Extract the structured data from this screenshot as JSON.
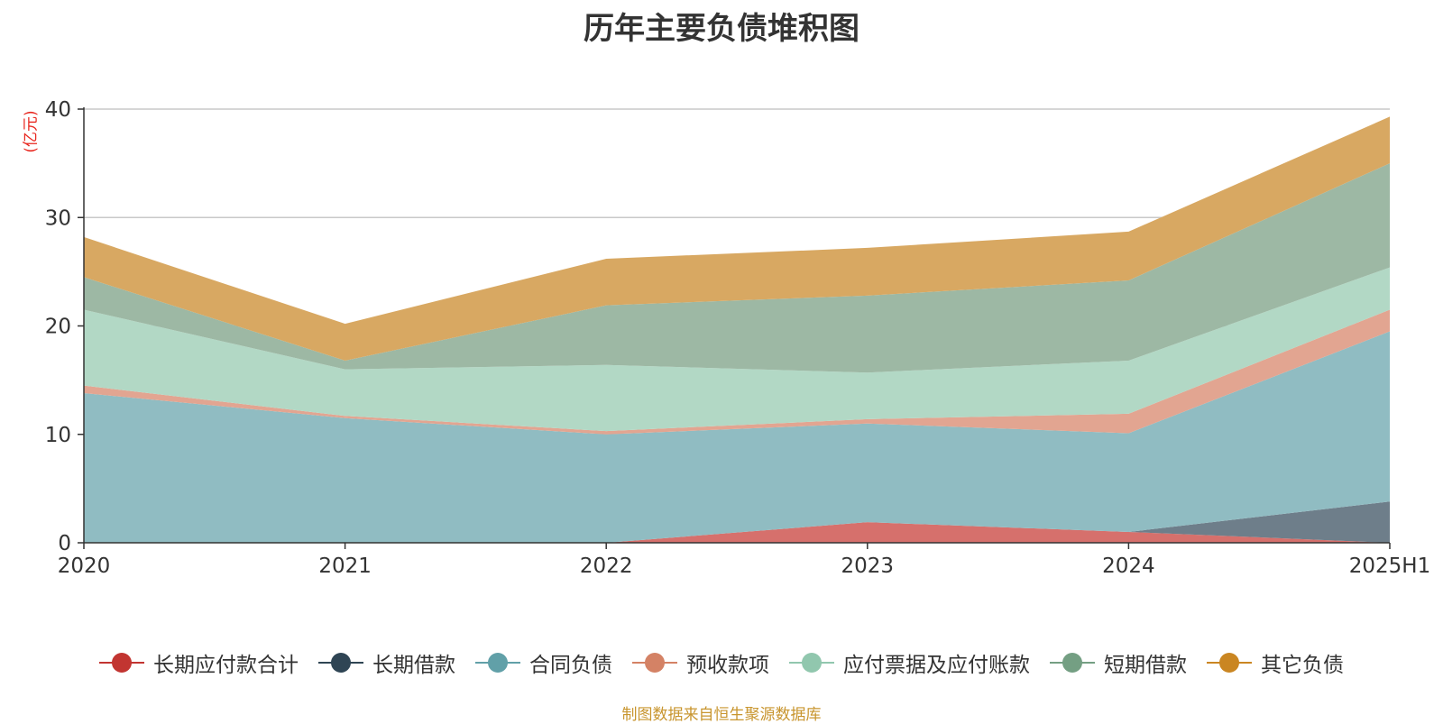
{
  "chart_data": {
    "type": "area",
    "title": "历年主要负债堆积图",
    "unit_label": "(亿元)",
    "categories": [
      "2020",
      "2021",
      "2022",
      "2023",
      "2024",
      "2025H1"
    ],
    "ylim": [
      0,
      40
    ],
    "yticks": [
      0,
      10,
      20,
      30,
      40
    ],
    "grid": true,
    "stacked": true,
    "legend_position": "bottom",
    "series": [
      {
        "name": "长期应付款合计",
        "color": "#c23531",
        "fill": "#d6706c",
        "values": [
          0,
          0,
          0,
          1.9,
          1.0,
          0
        ]
      },
      {
        "name": "长期借款",
        "color": "#2f4554",
        "fill": "#6e7e8a",
        "values": [
          0,
          0,
          0,
          0,
          0,
          3.8
        ]
      },
      {
        "name": "合同负债",
        "color": "#61a0a8",
        "fill": "#90bcc2",
        "values": [
          13.8,
          11.5,
          10.0,
          9.1,
          9.1,
          15.7
        ]
      },
      {
        "name": "预收款项",
        "color": "#d48265",
        "fill": "#e2a591",
        "values": [
          0.7,
          0.2,
          0.3,
          0.4,
          1.8,
          2.0
        ]
      },
      {
        "name": "应付票据及应付账款",
        "color": "#91c7ae",
        "fill": "#b2d8c5",
        "values": [
          7.0,
          4.3,
          6.1,
          4.3,
          4.9,
          3.9
        ]
      },
      {
        "name": "短期借款",
        "color": "#749f83",
        "fill": "#9db8a4",
        "values": [
          3.0,
          0.8,
          5.5,
          7.1,
          7.4,
          9.6
        ]
      },
      {
        "name": "其它负债",
        "color": "#ca8622",
        "fill": "#d8a862",
        "values": [
          3.7,
          3.4,
          4.3,
          4.4,
          4.5,
          4.3
        ]
      }
    ]
  },
  "source_note": "制图数据来自恒生聚源数据库"
}
